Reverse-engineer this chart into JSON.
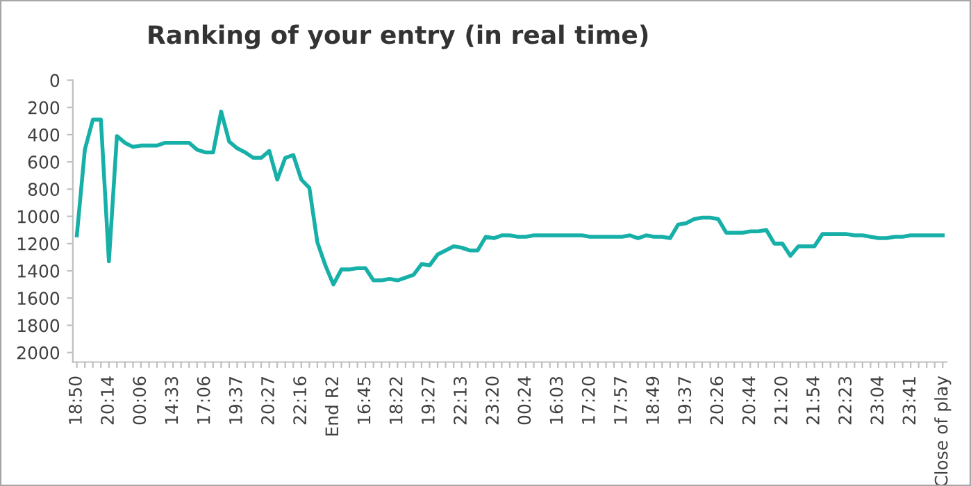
{
  "chart_data": {
    "type": "line",
    "title": "Ranking of your entry (in real time)",
    "categories": [
      "18:50",
      null,
      null,
      null,
      "20:14",
      null,
      null,
      null,
      "00:06",
      null,
      null,
      null,
      "14:33",
      null,
      null,
      null,
      "17:06",
      null,
      null,
      null,
      "19:37",
      null,
      null,
      null,
      "20:27",
      null,
      null,
      null,
      "22:16",
      null,
      null,
      null,
      "End R2",
      null,
      null,
      null,
      "16:45",
      null,
      null,
      null,
      "18:22",
      null,
      null,
      null,
      "19:27",
      null,
      null,
      null,
      "22:13",
      null,
      null,
      null,
      "23:20",
      null,
      null,
      null,
      "00:24",
      null,
      null,
      null,
      "16:03",
      null,
      null,
      null,
      "17:20",
      null,
      null,
      null,
      "17:57",
      null,
      null,
      null,
      "18:49",
      null,
      null,
      null,
      "19:37",
      null,
      null,
      null,
      "20:26",
      null,
      null,
      null,
      "20:44",
      null,
      null,
      null,
      "21:20",
      null,
      null,
      null,
      "21:54",
      null,
      null,
      null,
      "22:23",
      null,
      null,
      null,
      "23:04",
      null,
      null,
      null,
      "23:41",
      null,
      null,
      null,
      "Close of play"
    ],
    "series": [
      {
        "color": "#17b0a8",
        "values": [
          1140,
          510,
          290,
          290,
          1330,
          410,
          460,
          490,
          480,
          480,
          480,
          460,
          460,
          460,
          460,
          510,
          530,
          530,
          230,
          450,
          500,
          530,
          570,
          570,
          520,
          730,
          570,
          550,
          730,
          790,
          1190,
          1360,
          1500,
          1390,
          1390,
          1380,
          1380,
          1470,
          1470,
          1460,
          1470,
          1450,
          1430,
          1350,
          1360,
          1280,
          1250,
          1220,
          1230,
          1250,
          1250,
          1150,
          1160,
          1140,
          1140,
          1150,
          1150,
          1140,
          1140,
          1140,
          1140,
          1140,
          1140,
          1140,
          1150,
          1150,
          1150,
          1150,
          1150,
          1140,
          1160,
          1140,
          1150,
          1150,
          1160,
          1060,
          1050,
          1020,
          1010,
          1010,
          1020,
          1120,
          1120,
          1120,
          1110,
          1110,
          1100,
          1200,
          1200,
          1290,
          1220,
          1220,
          1220,
          1130,
          1130,
          1130,
          1130,
          1140,
          1140,
          1150,
          1160,
          1160,
          1150,
          1150,
          1140,
          1140,
          1140,
          1140,
          1140
        ]
      }
    ],
    "ylim": [
      2070,
      0
    ],
    "yticks": [
      0,
      200,
      400,
      600,
      800,
      1000,
      1200,
      1400,
      1600,
      1800,
      2000
    ],
    "grid": false,
    "legend": false,
    "marker": "none",
    "line_style": "solid"
  }
}
